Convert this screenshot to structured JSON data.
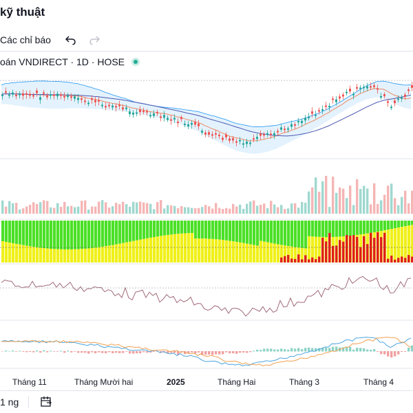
{
  "header": {
    "title": "kỹ thuật"
  },
  "toolbar": {
    "indicators_label": "Các chỉ báo",
    "undo_icon": "undo-icon",
    "redo_icon": "redo-icon"
  },
  "legend": {
    "symbol": "oán VNDIRECT · 1D · HOSE",
    "status_color": "#22ab94"
  },
  "time_axis": {
    "labels": [
      "Tháng 11",
      "Tháng Mười hai",
      "2025",
      "Tháng Hai",
      "Tháng 3",
      "Tháng 4"
    ],
    "bold_label": "2025"
  },
  "footer": {
    "range_label": "1 ng",
    "calendar_icon": "calendar-range-icon"
  },
  "colors": {
    "up": "#26a69a",
    "down": "#ef5350",
    "bb_fill": "#e3f2fd",
    "bb_line": "#2196f3",
    "ma_fast": "#ef8a62",
    "ma_slow": "#4a56b0",
    "green": "#4be026",
    "yellow": "#f0f01a",
    "red": "#e0201a",
    "rsi": "#a06a78",
    "macd": "#4aa3df",
    "signal": "#f0a050"
  },
  "chart_data": [
    {
      "type": "line",
      "title": "",
      "panel": "price-bollinger",
      "series_count": 4
    },
    {
      "type": "bar",
      "title": "",
      "panel": "volume"
    },
    {
      "type": "bar",
      "title": "",
      "panel": "trend-strength"
    },
    {
      "type": "line",
      "title": "",
      "panel": "rsi"
    },
    {
      "type": "line",
      "title": "",
      "panel": "macd"
    }
  ]
}
